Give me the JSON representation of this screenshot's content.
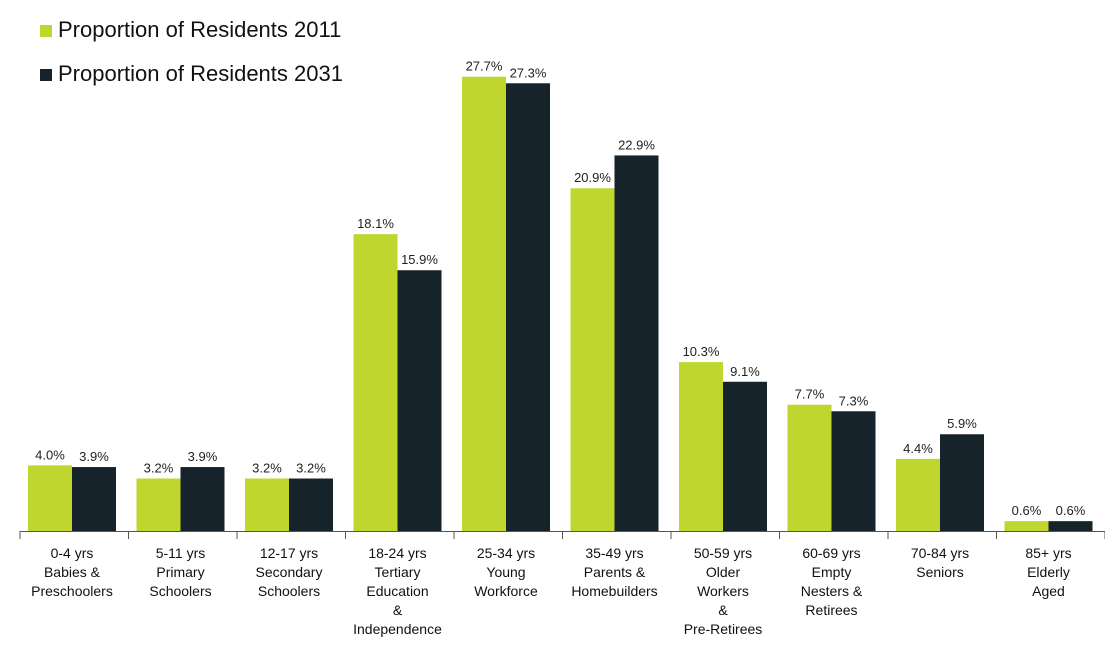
{
  "chart_data": {
    "type": "bar",
    "title": "",
    "xlabel": "",
    "ylabel": "",
    "ylim": [
      0,
      30
    ],
    "grid": false,
    "legend_position": "top-left",
    "categories": [
      [
        "0-4 yrs",
        "Babies &",
        "Preschoolers"
      ],
      [
        "5-11 yrs",
        "Primary",
        "Schoolers"
      ],
      [
        "12-17 yrs",
        "Secondary",
        "Schoolers"
      ],
      [
        "18-24 yrs",
        "Tertiary",
        "Education",
        "&",
        "Independence"
      ],
      [
        "25-34 yrs",
        "Young",
        "Workforce"
      ],
      [
        "35-49 yrs",
        "Parents &",
        "Homebuilders"
      ],
      [
        "50-59 yrs",
        "Older",
        "Workers",
        "&",
        "Pre-Retirees"
      ],
      [
        "60-69 yrs",
        "Empty",
        "Nesters &",
        "Retirees"
      ],
      [
        "70-84 yrs",
        "Seniors"
      ],
      [
        "85+ yrs",
        "Elderly",
        "Aged"
      ]
    ],
    "series": [
      {
        "name": "Proportion of Residents 2011",
        "color": "#bfd62f",
        "values": [
          4.0,
          3.2,
          3.2,
          18.1,
          27.7,
          20.9,
          10.3,
          7.7,
          4.4,
          0.6
        ],
        "labels": [
          "4.0%",
          "3.2%",
          "3.2%",
          "18.1%",
          "27.7%",
          "20.9%",
          "10.3%",
          "7.7%",
          "4.4%",
          "0.6%"
        ]
      },
      {
        "name": "Proportion of Residents 2031",
        "color": "#16232b",
        "values": [
          3.9,
          3.9,
          3.2,
          15.9,
          27.3,
          22.9,
          9.1,
          7.3,
          5.9,
          0.6
        ],
        "labels": [
          "3.9%",
          "3.9%",
          "3.2%",
          "15.9%",
          "27.3%",
          "22.9%",
          "9.1%",
          "7.3%",
          "5.9%",
          "0.6%"
        ]
      }
    ]
  }
}
